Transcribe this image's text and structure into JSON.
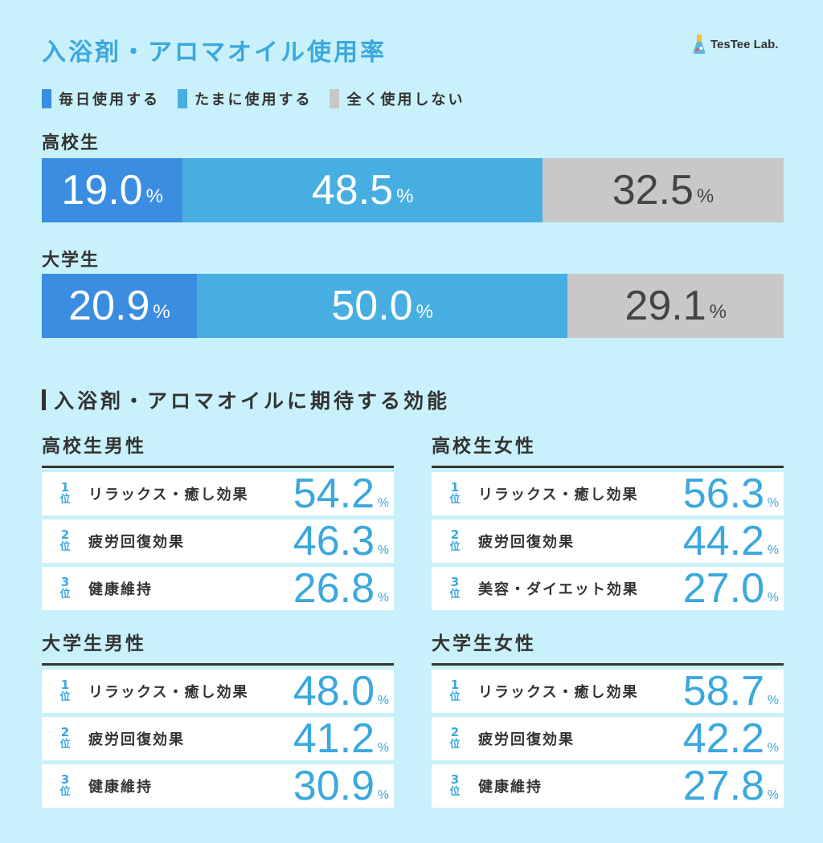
{
  "title": "入浴剤・アロマオイル使用率",
  "logo": "TesTee Lab.",
  "legend": [
    {
      "label": "毎日使用する",
      "color": "#3a8de0"
    },
    {
      "label": "たまに使用する",
      "color": "#47aee2"
    },
    {
      "label": "全く使用しない",
      "color": "#c8c8c8"
    }
  ],
  "pct_symbol": "%",
  "section2_title": "入浴剤・アロマオイルに期待する効能",
  "chart_data": {
    "type": "bar",
    "stacked": true,
    "orientation": "horizontal",
    "categories": [
      "高校生",
      "大学生"
    ],
    "series": [
      {
        "name": "毎日使用する",
        "values": [
          19.0,
          20.9
        ],
        "labels": [
          "19.0",
          "20.9"
        ],
        "color": "#3a8de0"
      },
      {
        "name": "たまに使用する",
        "values": [
          48.5,
          50.0
        ],
        "labels": [
          "48.5",
          "50.0"
        ],
        "color": "#47aee2"
      },
      {
        "name": "全く使用しない",
        "values": [
          32.5,
          29.1
        ],
        "labels": [
          "32.5",
          "29.1"
        ],
        "color": "#c8c8c8"
      }
    ]
  },
  "rankings": [
    {
      "title": "高校生男性",
      "items": [
        {
          "rank": "1",
          "unit": "位",
          "label": "リラックス・癒し効果",
          "value": "54.2"
        },
        {
          "rank": "2",
          "unit": "位",
          "label": "疲労回復効果",
          "value": "46.3"
        },
        {
          "rank": "3",
          "unit": "位",
          "label": "健康維持",
          "value": "26.8"
        }
      ]
    },
    {
      "title": "高校生女性",
      "items": [
        {
          "rank": "1",
          "unit": "位",
          "label": "リラックス・癒し効果",
          "value": "56.3"
        },
        {
          "rank": "2",
          "unit": "位",
          "label": "疲労回復効果",
          "value": "44.2"
        },
        {
          "rank": "3",
          "unit": "位",
          "label": "美容・ダイエット効果",
          "value": "27.0"
        }
      ]
    },
    {
      "title": "大学生男性",
      "items": [
        {
          "rank": "1",
          "unit": "位",
          "label": "リラックス・癒し効果",
          "value": "48.0"
        },
        {
          "rank": "2",
          "unit": "位",
          "label": "疲労回復効果",
          "value": "41.2"
        },
        {
          "rank": "3",
          "unit": "位",
          "label": "健康維持",
          "value": "30.9"
        }
      ]
    },
    {
      "title": "大学生女性",
      "items": [
        {
          "rank": "1",
          "unit": "位",
          "label": "リラックス・癒し効果",
          "value": "58.7"
        },
        {
          "rank": "2",
          "unit": "位",
          "label": "疲労回復効果",
          "value": "42.2"
        },
        {
          "rank": "3",
          "unit": "位",
          "label": "健康維持",
          "value": "27.8"
        }
      ]
    }
  ]
}
